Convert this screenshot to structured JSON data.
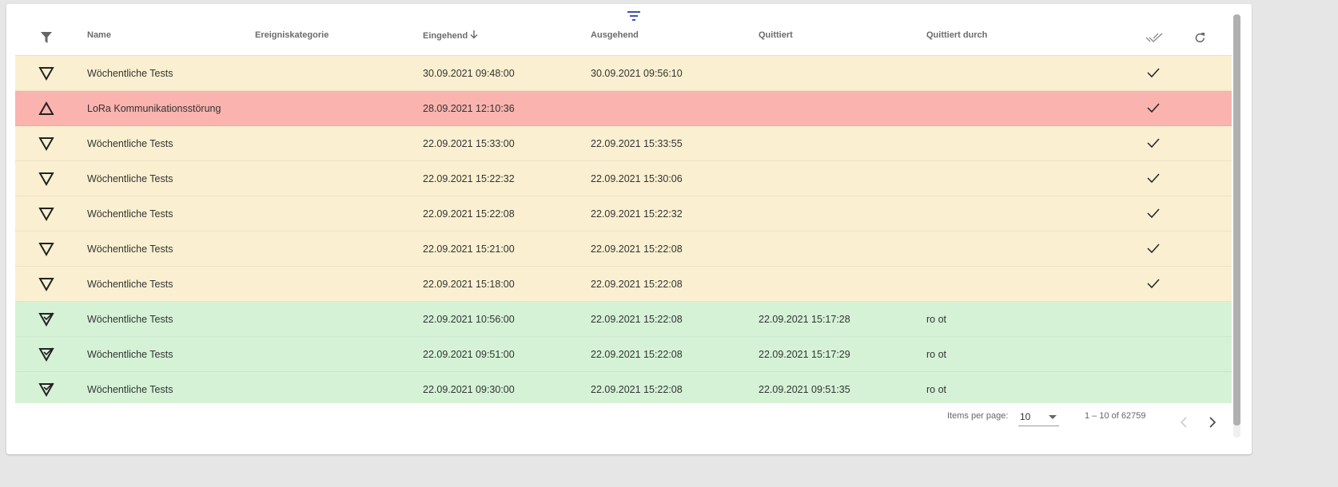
{
  "colors": {
    "pending": "#faefd0",
    "active": "#fab3ae",
    "acknowledged": "#d5f2d7"
  },
  "header": {
    "filter_icon": "filter-icon",
    "columns": [
      "Name",
      "Ereigniskategorie",
      "Eingehend",
      "Ausgehend",
      "Quittiert",
      "Quittiert durch"
    ],
    "sort_icon": "arrow-down-icon",
    "ack_all_icon": "double-check-icon",
    "refresh_icon": "refresh-icon"
  },
  "rows": [
    {
      "state": "pending",
      "icon": "triangle-down-icon",
      "name": "Wöchentliche Tests",
      "category": "",
      "incoming": "30.09.2021 09:48:00",
      "outgoing": "30.09.2021 09:56:10",
      "acknowledged": "",
      "acknowledged_by": "",
      "ack_button": true
    },
    {
      "state": "active",
      "icon": "triangle-up-icon",
      "name": "LoRa Kommunikationsstörung",
      "category": "",
      "incoming": "28.09.2021 12:10:36",
      "outgoing": "",
      "acknowledged": "",
      "acknowledged_by": "",
      "ack_button": true
    },
    {
      "state": "pending",
      "icon": "triangle-down-icon",
      "name": "Wöchentliche Tests",
      "category": "",
      "incoming": "22.09.2021 15:33:00",
      "outgoing": "22.09.2021 15:33:55",
      "acknowledged": "",
      "acknowledged_by": "",
      "ack_button": true
    },
    {
      "state": "pending",
      "icon": "triangle-down-icon",
      "name": "Wöchentliche Tests",
      "category": "",
      "incoming": "22.09.2021 15:22:32",
      "outgoing": "22.09.2021 15:30:06",
      "acknowledged": "",
      "acknowledged_by": "",
      "ack_button": true
    },
    {
      "state": "pending",
      "icon": "triangle-down-icon",
      "name": "Wöchentliche Tests",
      "category": "",
      "incoming": "22.09.2021 15:22:08",
      "outgoing": "22.09.2021 15:22:32",
      "acknowledged": "",
      "acknowledged_by": "",
      "ack_button": true
    },
    {
      "state": "pending",
      "icon": "triangle-down-icon",
      "name": "Wöchentliche Tests",
      "category": "",
      "incoming": "22.09.2021 15:21:00",
      "outgoing": "22.09.2021 15:22:08",
      "acknowledged": "",
      "acknowledged_by": "",
      "ack_button": true
    },
    {
      "state": "pending",
      "icon": "triangle-down-icon",
      "name": "Wöchentliche Tests",
      "category": "",
      "incoming": "22.09.2021 15:18:00",
      "outgoing": "22.09.2021 15:22:08",
      "acknowledged": "",
      "acknowledged_by": "",
      "ack_button": true
    },
    {
      "state": "acknowledged",
      "icon": "triangle-down-check-icon",
      "name": "Wöchentliche Tests",
      "category": "",
      "incoming": "22.09.2021 10:56:00",
      "outgoing": "22.09.2021 15:22:08",
      "acknowledged": "22.09.2021 15:17:28",
      "acknowledged_by": "ro ot",
      "ack_button": false
    },
    {
      "state": "acknowledged",
      "icon": "triangle-down-check-icon",
      "name": "Wöchentliche Tests",
      "category": "",
      "incoming": "22.09.2021 09:51:00",
      "outgoing": "22.09.2021 15:22:08",
      "acknowledged": "22.09.2021 15:17:29",
      "acknowledged_by": "ro ot",
      "ack_button": false
    },
    {
      "state": "acknowledged",
      "icon": "triangle-down-check-icon",
      "name": "Wöchentliche Tests",
      "category": "",
      "incoming": "22.09.2021 09:30:00",
      "outgoing": "22.09.2021 15:22:08",
      "acknowledged": "22.09.2021 09:51:35",
      "acknowledged_by": "ro ot",
      "ack_button": false
    }
  ],
  "paginator": {
    "items_per_page_label": "Items per page:",
    "page_size": "10",
    "range": "1 – 10 of 62759"
  }
}
